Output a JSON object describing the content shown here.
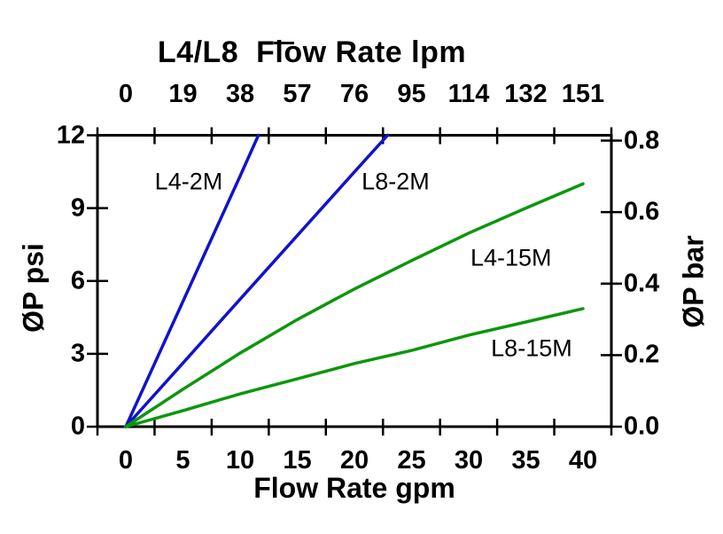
{
  "chart_data": {
    "type": "line",
    "top_axis": {
      "title": "L4/L8  Flow Rate lpm",
      "unit": "lpm",
      "tick_labels": [
        "0",
        "19",
        "38",
        "57",
        "76",
        "95",
        "114",
        "132",
        "151"
      ]
    },
    "bottom_axis": {
      "title": "Flow Rate gpm",
      "unit": "gpm",
      "tick_labels": [
        "0",
        "5",
        "10",
        "15",
        "20",
        "25",
        "30",
        "35",
        "40"
      ],
      "tick_values": [
        0,
        5,
        10,
        15,
        20,
        25,
        30,
        35,
        40
      ],
      "axis_range_gpm": [
        -2.5,
        42.5
      ]
    },
    "left_axis": {
      "title": "ØP psi",
      "unit": "psi",
      "tick_labels": [
        "0",
        "3",
        "6",
        "9",
        "12"
      ],
      "tick_values": [
        0,
        3,
        6,
        9,
        12
      ],
      "range": [
        0,
        12
      ]
    },
    "right_axis": {
      "title": "ØP bar",
      "unit": "bar",
      "tick_labels": [
        "0.0",
        "0.2",
        "0.4",
        "0.6",
        "0.8"
      ],
      "tick_values": [
        0,
        0.2,
        0.4,
        0.6,
        0.8
      ],
      "range": [
        0,
        0.815
      ]
    },
    "grid": false,
    "legend": "inline-labels",
    "colors": {
      "blue_series": "#1212cc",
      "green_series": "#0b970b",
      "axis": "#000000"
    },
    "series": [
      {
        "name": "L4-2M",
        "color": "#1212cc",
        "points_gpm_psi": [
          [
            0,
            0
          ],
          [
            5,
            5.16
          ],
          [
            10,
            10.32
          ],
          [
            11.6,
            12
          ]
        ],
        "label_pos_gpm_psi": [
          5.5,
          10.1
        ]
      },
      {
        "name": "L8-2M",
        "color": "#1212cc",
        "points_gpm_psi": [
          [
            0,
            0
          ],
          [
            5,
            2.62
          ],
          [
            10,
            5.25
          ],
          [
            15,
            7.87
          ],
          [
            20,
            10.49
          ],
          [
            22.9,
            12
          ]
        ],
        "label_pos_gpm_psi": [
          23.6,
          10.1
        ]
      },
      {
        "name": "L4-15M",
        "color": "#0b970b",
        "points_gpm_psi": [
          [
            0,
            0
          ],
          [
            5,
            1.54
          ],
          [
            10,
            3.03
          ],
          [
            15,
            4.41
          ],
          [
            20,
            5.67
          ],
          [
            25,
            6.84
          ],
          [
            30,
            7.97
          ],
          [
            35,
            9.0
          ],
          [
            40,
            10.0
          ]
        ],
        "label_pos_gpm_psi": [
          33.7,
          6.95
        ]
      },
      {
        "name": "L8-15M",
        "color": "#0b970b",
        "points_gpm_psi": [
          [
            0,
            0
          ],
          [
            5,
            0.66
          ],
          [
            10,
            1.35
          ],
          [
            15,
            1.97
          ],
          [
            20,
            2.6
          ],
          [
            25,
            3.14
          ],
          [
            30,
            3.77
          ],
          [
            35,
            4.31
          ],
          [
            40,
            4.86
          ]
        ],
        "label_pos_gpm_psi": [
          35.5,
          3.2
        ]
      }
    ]
  }
}
